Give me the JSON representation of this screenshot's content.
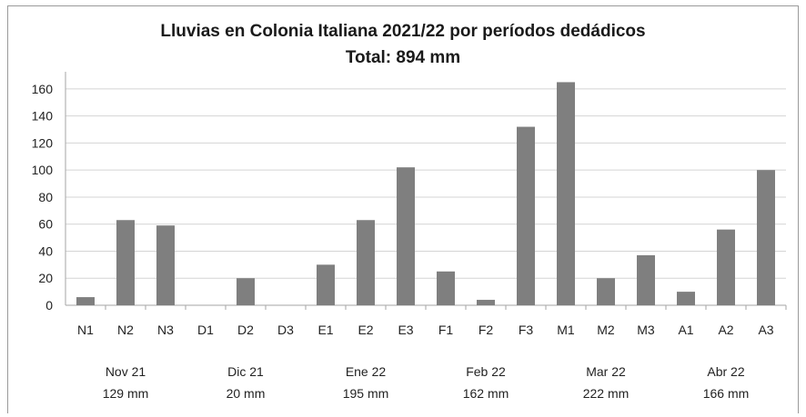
{
  "chart_data": {
    "type": "bar",
    "title": "Lluvias en Colonia Italiana 2021/22 por períodos dedádicos",
    "subtitle": "Total: 894 mm",
    "categories": [
      "N1",
      "N2",
      "N3",
      "D1",
      "D2",
      "D3",
      "E1",
      "E2",
      "E3",
      "F1",
      "F2",
      "F3",
      "M1",
      "M2",
      "M3",
      "A1",
      "A2",
      "A3"
    ],
    "values": [
      6,
      63,
      59,
      0,
      20,
      0,
      30,
      63,
      102,
      25,
      4,
      132,
      165,
      20,
      37,
      10,
      56,
      100
    ],
    "ylim": [
      0,
      170
    ],
    "yticks": [
      0,
      20,
      40,
      60,
      80,
      100,
      120,
      140,
      160
    ],
    "grid": true,
    "bar_color": "#7f7f7f",
    "groups": [
      {
        "label": "Nov 21",
        "total": "129  mm"
      },
      {
        "label": "Dic 21",
        "total": "20 mm"
      },
      {
        "label": "Ene 22",
        "total": "195 mm"
      },
      {
        "label": "Feb 22",
        "total": "162 mm"
      },
      {
        "label": "Mar 22",
        "total": "222 mm"
      },
      {
        "label": "Abr 22",
        "total": "166 mm"
      }
    ]
  }
}
